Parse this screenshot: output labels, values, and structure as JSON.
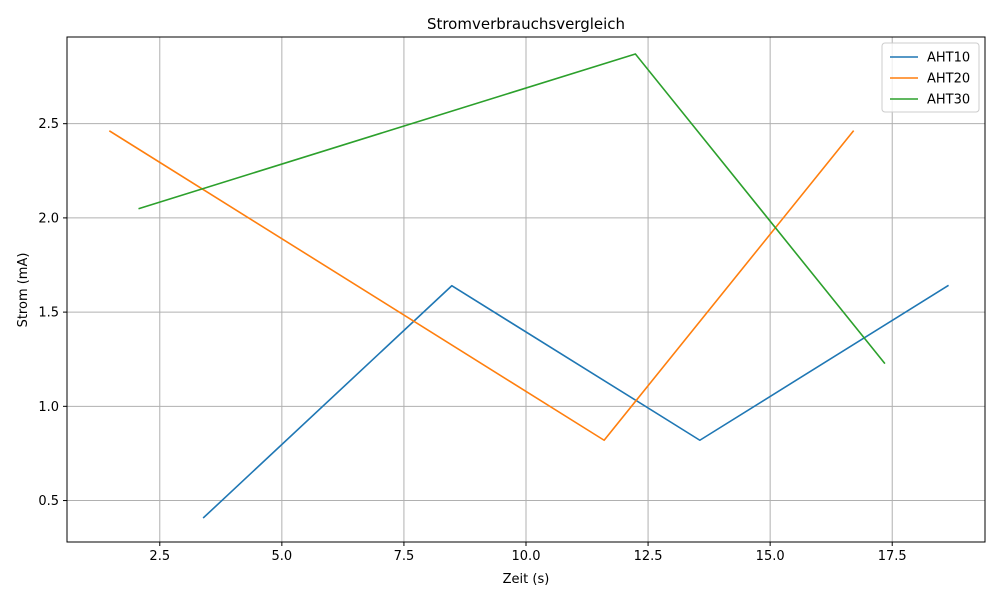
{
  "chart_data": {
    "type": "line",
    "title": "Stromverbrauchsvergleich",
    "xlabel": "Zeit (s)",
    "ylabel": "Strom (mA)",
    "xlim": [
      0.6,
      19.4
    ],
    "ylim": [
      0.28,
      2.96
    ],
    "xticks": [
      2.5,
      5.0,
      7.5,
      10.0,
      12.5,
      15.0,
      17.5
    ],
    "xtick_labels": [
      "2.5",
      "5.0",
      "7.5",
      "10.0",
      "12.5",
      "15.0",
      "17.5"
    ],
    "yticks": [
      0.5,
      1.0,
      1.5,
      2.0,
      2.5
    ],
    "ytick_labels": [
      "0.5",
      "1.0",
      "1.5",
      "2.0",
      "2.5"
    ],
    "grid": true,
    "legend_position": "top-right",
    "series": [
      {
        "name": "AHT10",
        "color": "#1f77b4",
        "x": [
          3.4,
          8.48,
          13.56,
          18.64
        ],
        "y": [
          0.41,
          1.64,
          0.82,
          1.64
        ]
      },
      {
        "name": "AHT20",
        "color": "#ff7f0e",
        "x": [
          1.48,
          11.6,
          16.7
        ],
        "y": [
          2.46,
          0.82,
          2.46
        ]
      },
      {
        "name": "AHT30",
        "color": "#2ca02c",
        "x": [
          2.08,
          12.24,
          17.34
        ],
        "y": [
          2.05,
          2.87,
          1.23
        ]
      }
    ]
  }
}
